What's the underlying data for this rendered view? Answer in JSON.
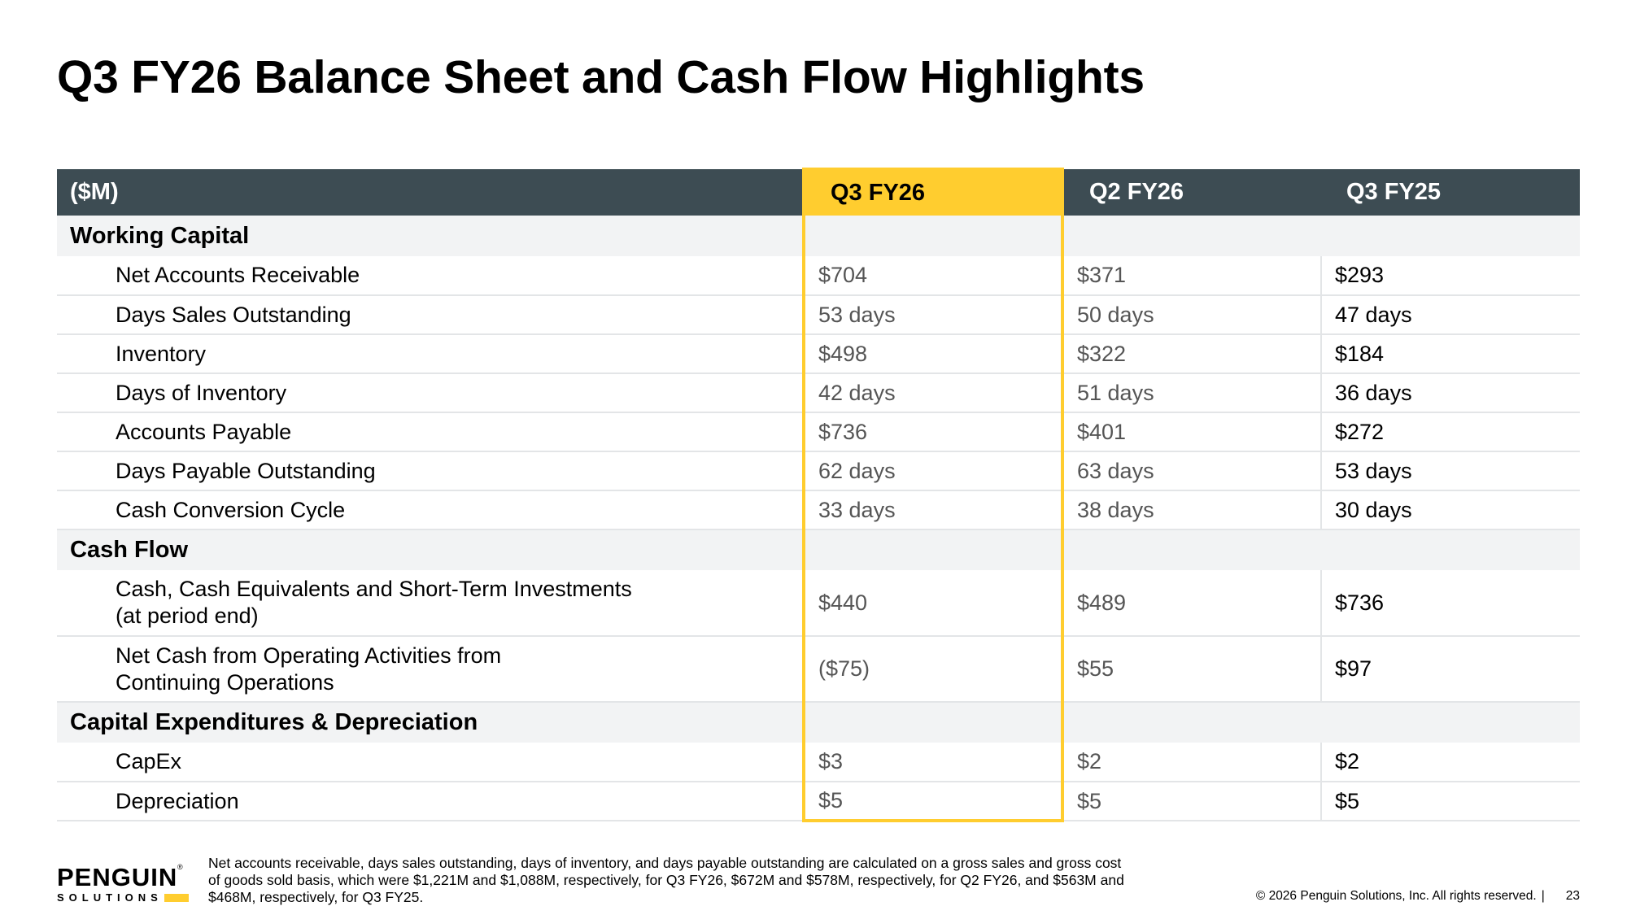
{
  "title": "Q3 FY26 Balance Sheet and Cash Flow Highlights",
  "table": {
    "headers": [
      "($M)",
      "Q3 FY26",
      "Q2 FY26",
      "Q3 FY25"
    ],
    "highlight_color": "#ffcd2f",
    "header_bg": "#3d4c53",
    "sections": [
      {
        "name": "Working Capital",
        "rows": [
          {
            "label": "Net Accounts Receivable",
            "values": [
              "$704",
              "$371",
              "$293"
            ]
          },
          {
            "label": "Days Sales Outstanding",
            "values": [
              "53 days",
              "50 days",
              "47 days"
            ]
          },
          {
            "label": "Inventory",
            "values": [
              "$498",
              "$322",
              "$184"
            ]
          },
          {
            "label": "Days of Inventory",
            "values": [
              "42 days",
              "51 days",
              "36 days"
            ]
          },
          {
            "label": "Accounts Payable",
            "values": [
              "$736",
              "$401",
              "$272"
            ]
          },
          {
            "label": "Days Payable Outstanding",
            "values": [
              "62 days",
              "63 days",
              "53 days"
            ]
          },
          {
            "label": "Cash Conversion Cycle",
            "values": [
              "33 days",
              "38 days",
              "30 days"
            ]
          }
        ]
      },
      {
        "name": "Cash Flow",
        "rows": [
          {
            "label_lines": [
              "Cash, Cash Equivalents and Short-Term Investments",
              "(at period end)"
            ],
            "values": [
              "$440",
              "$489",
              "$736"
            ]
          },
          {
            "label_lines": [
              "Net Cash from Operating Activities from",
              "Continuing Operations"
            ],
            "values": [
              "($75)",
              "$55",
              "$97"
            ]
          }
        ]
      },
      {
        "name": "Capital Expenditures & Depreciation",
        "rows": [
          {
            "label": "CapEx",
            "values": [
              "$3",
              "$2",
              "$2"
            ]
          },
          {
            "label": "Depreciation",
            "values": [
              "$5",
              "$5",
              "$5"
            ]
          }
        ]
      }
    ]
  },
  "footnote": "Net accounts receivable, days sales outstanding, days of inventory, and days payable outstanding are calculated on a gross sales and gross cost of goods sold basis, which were $1,221M and $1,088M, respectively, for Q3 FY26, $672M and $578M, respectively, for Q2 FY26, and $563M and $468M, respectively, for Q3 FY25.",
  "logo": {
    "word": "PENGUIN",
    "sub": "SOLUTIONS",
    "reg": "®"
  },
  "copyright": "© 2026 Penguin Solutions, Inc. All rights reserved.",
  "separator": "|",
  "page_number": "23"
}
